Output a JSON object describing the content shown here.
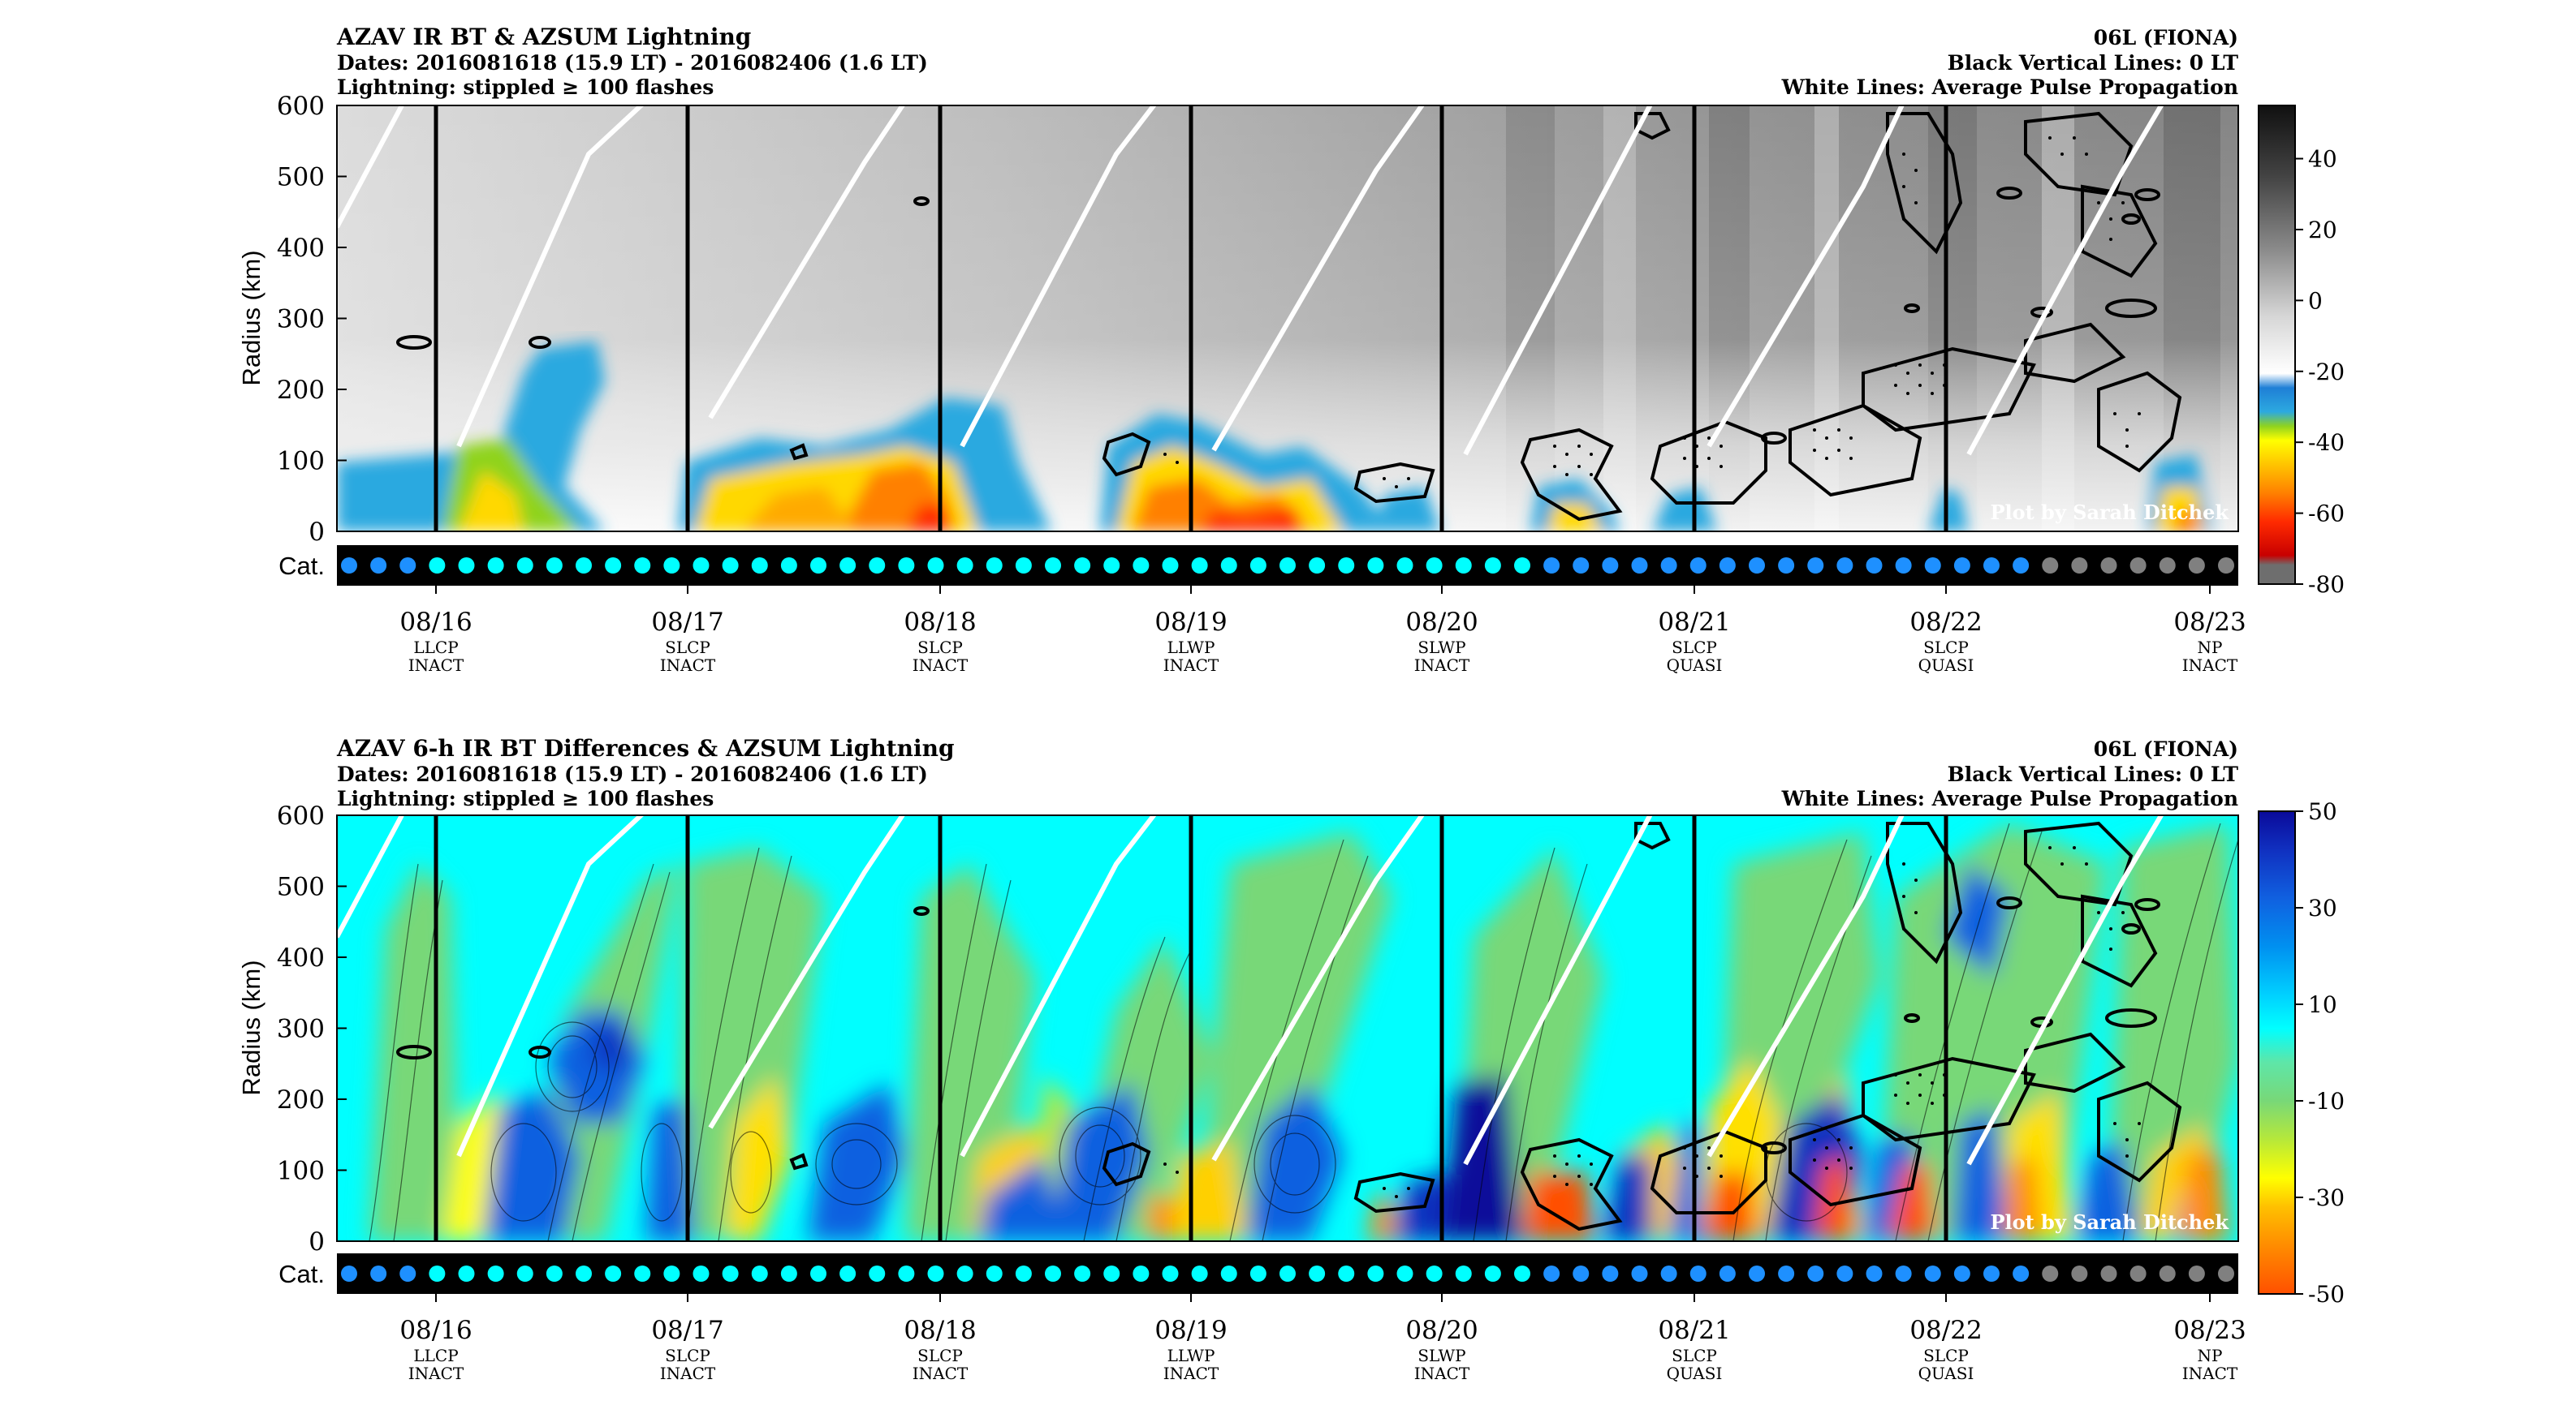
{
  "colors": {
    "black": "#000000",
    "white": "#ffffff",
    "ir_scale": [
      "#6e6e6e",
      "#c80000",
      "#ff2a00",
      "#ff6a00",
      "#ffaa00",
      "#ffd800",
      "#ffff00",
      "#8fd31f",
      "#2ca9e0",
      "#1f7fd6",
      "#ffffff",
      "#d6d6d6",
      "#a8a8a8",
      "#7a7a7a",
      "#4d4d4d",
      "#202020"
    ],
    "diff_scale": [
      "#ff5000",
      "#ff8c00",
      "#ffb400",
      "#ffe000",
      "#ffff00",
      "#b6e83a",
      "#78d878",
      "#5ee6a8",
      "#00ffff",
      "#00e5ff",
      "#00b4ff",
      "#0090f0",
      "#1060e0",
      "#1030c0",
      "#0a0a9a"
    ],
    "cat_dots": {
      "blue": "#1e90ff",
      "cyan": "#00ffff",
      "gray": "#808080"
    }
  },
  "dates": [
    "08/16",
    "08/17",
    "08/18",
    "08/19",
    "08/20",
    "08/21",
    "08/22",
    "08/23"
  ],
  "date_labels": [
    {
      "date": "08/16",
      "line1": "LLCP",
      "line2": "INACT"
    },
    {
      "date": "08/17",
      "line1": "SLCP",
      "line2": "INACT"
    },
    {
      "date": "08/18",
      "line1": "SLCP",
      "line2": "INACT"
    },
    {
      "date": "08/19",
      "line1": "LLWP",
      "line2": "INACT"
    },
    {
      "date": "08/20",
      "line1": "SLWP",
      "line2": "INACT"
    },
    {
      "date": "08/21",
      "line1": "SLCP",
      "line2": "QUASI"
    },
    {
      "date": "08/22",
      "line1": "SLCP",
      "line2": "QUASI"
    },
    {
      "date": "08/23",
      "line1": "NP",
      "line2": "INACT"
    }
  ],
  "cat_label": "Cat.",
  "ylabel": "Radius (km)",
  "credit": "Plot by Sarah Ditchek",
  "cat_sequence": [
    "blue",
    "blue",
    "blue",
    "cyan",
    "cyan",
    "cyan",
    "cyan",
    "cyan",
    "cyan",
    "cyan",
    "cyan",
    "cyan",
    "cyan",
    "cyan",
    "cyan",
    "cyan",
    "cyan",
    "cyan",
    "cyan",
    "cyan",
    "cyan",
    "cyan",
    "cyan",
    "cyan",
    "cyan",
    "cyan",
    "cyan",
    "cyan",
    "cyan",
    "cyan",
    "cyan",
    "cyan",
    "cyan",
    "cyan",
    "cyan",
    "cyan",
    "cyan",
    "cyan",
    "cyan",
    "cyan",
    "cyan",
    "blue",
    "blue",
    "blue",
    "blue",
    "blue",
    "blue",
    "blue",
    "blue",
    "blue",
    "blue",
    "blue",
    "blue",
    "blue",
    "blue",
    "blue",
    "blue",
    "blue",
    "gray",
    "gray",
    "gray",
    "gray",
    "gray",
    "gray",
    "gray"
  ],
  "chart_data": [
    {
      "type": "heatmap",
      "title": "AZAV IR BT & AZSUM Lightning",
      "subtitle1": "Dates: 2016081618 (15.9 LT) - 2016082406 (1.6 LT)",
      "subtitle2": "Lightning: stippled ≥ 100 flashes",
      "right1": "06L (FIONA)",
      "right2": "Black Vertical Lines: 0 LT",
      "right3": "White Lines: Average Pulse Propagation",
      "ylim": [
        0,
        600
      ],
      "yticks": [
        "0",
        "100",
        "200",
        "300",
        "400",
        "500",
        "600"
      ],
      "colorbar_ticks": [
        "40",
        "20",
        "0",
        "-20",
        "-40",
        "-60",
        "-80"
      ],
      "colorbar_range": [
        -80,
        55
      ]
    },
    {
      "type": "heatmap",
      "title": "AZAV 6-h IR BT Differences & AZSUM Lightning",
      "subtitle1": "Dates: 2016081618 (15.9 LT) - 2016082406 (1.6 LT)",
      "subtitle2": "Lightning: stippled ≥ 100 flashes",
      "right1": "06L (FIONA)",
      "right2": "Black Vertical Lines: 0 LT",
      "right3": "White Lines: Average Pulse Propagation",
      "ylim": [
        0,
        600
      ],
      "yticks": [
        "0",
        "100",
        "200",
        "300",
        "400",
        "500",
        "600"
      ],
      "colorbar_ticks": [
        "50",
        "30",
        "10",
        "-10",
        "-30",
        "-50"
      ],
      "colorbar_range": [
        -50,
        50
      ]
    }
  ]
}
